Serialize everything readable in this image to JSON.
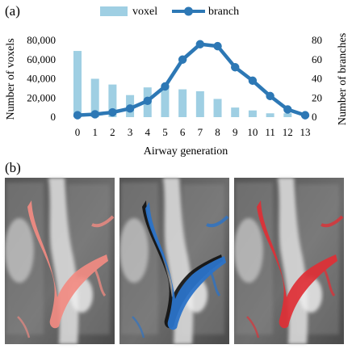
{
  "panel_a_label": "(a)",
  "panel_b_label": "(b)",
  "chart_data": {
    "type": "bar",
    "x": [
      0,
      1,
      2,
      3,
      4,
      5,
      6,
      7,
      8,
      9,
      10,
      11,
      12,
      13
    ],
    "xlabel": "Airway generation",
    "series": [
      {
        "name": "voxel",
        "type": "bar",
        "axis": "left",
        "color": "#9fcfe3",
        "values": [
          69000,
          40000,
          34000,
          23000,
          31000,
          32000,
          29000,
          27000,
          19000,
          10000,
          7000,
          4000,
          4000,
          500
        ]
      },
      {
        "name": "branch",
        "type": "line",
        "axis": "right",
        "color": "#2d78b5",
        "values": [
          2,
          3,
          5,
          9,
          17,
          32,
          60,
          76,
          74,
          52,
          38,
          22,
          8,
          2
        ]
      }
    ],
    "y_left": {
      "label": "Number of voxels",
      "ticks": [
        "0",
        "20,000",
        "40,000",
        "60,000",
        "80,000"
      ],
      "range": [
        0,
        80000
      ]
    },
    "y_right": {
      "label": "Number of branches",
      "ticks": [
        "0",
        "20",
        "40",
        "60",
        "80"
      ],
      "range": [
        0,
        80
      ]
    },
    "legend": {
      "placement": "top",
      "entries": [
        "voxel",
        "branch"
      ]
    },
    "grid": false
  },
  "ct_panels": [
    {
      "overlay": "salmon",
      "color": "#f28b82"
    },
    {
      "overlay": "blue-with-dark-outline",
      "color": "#2b73c8"
    },
    {
      "overlay": "red",
      "color": "#e02f35"
    }
  ]
}
